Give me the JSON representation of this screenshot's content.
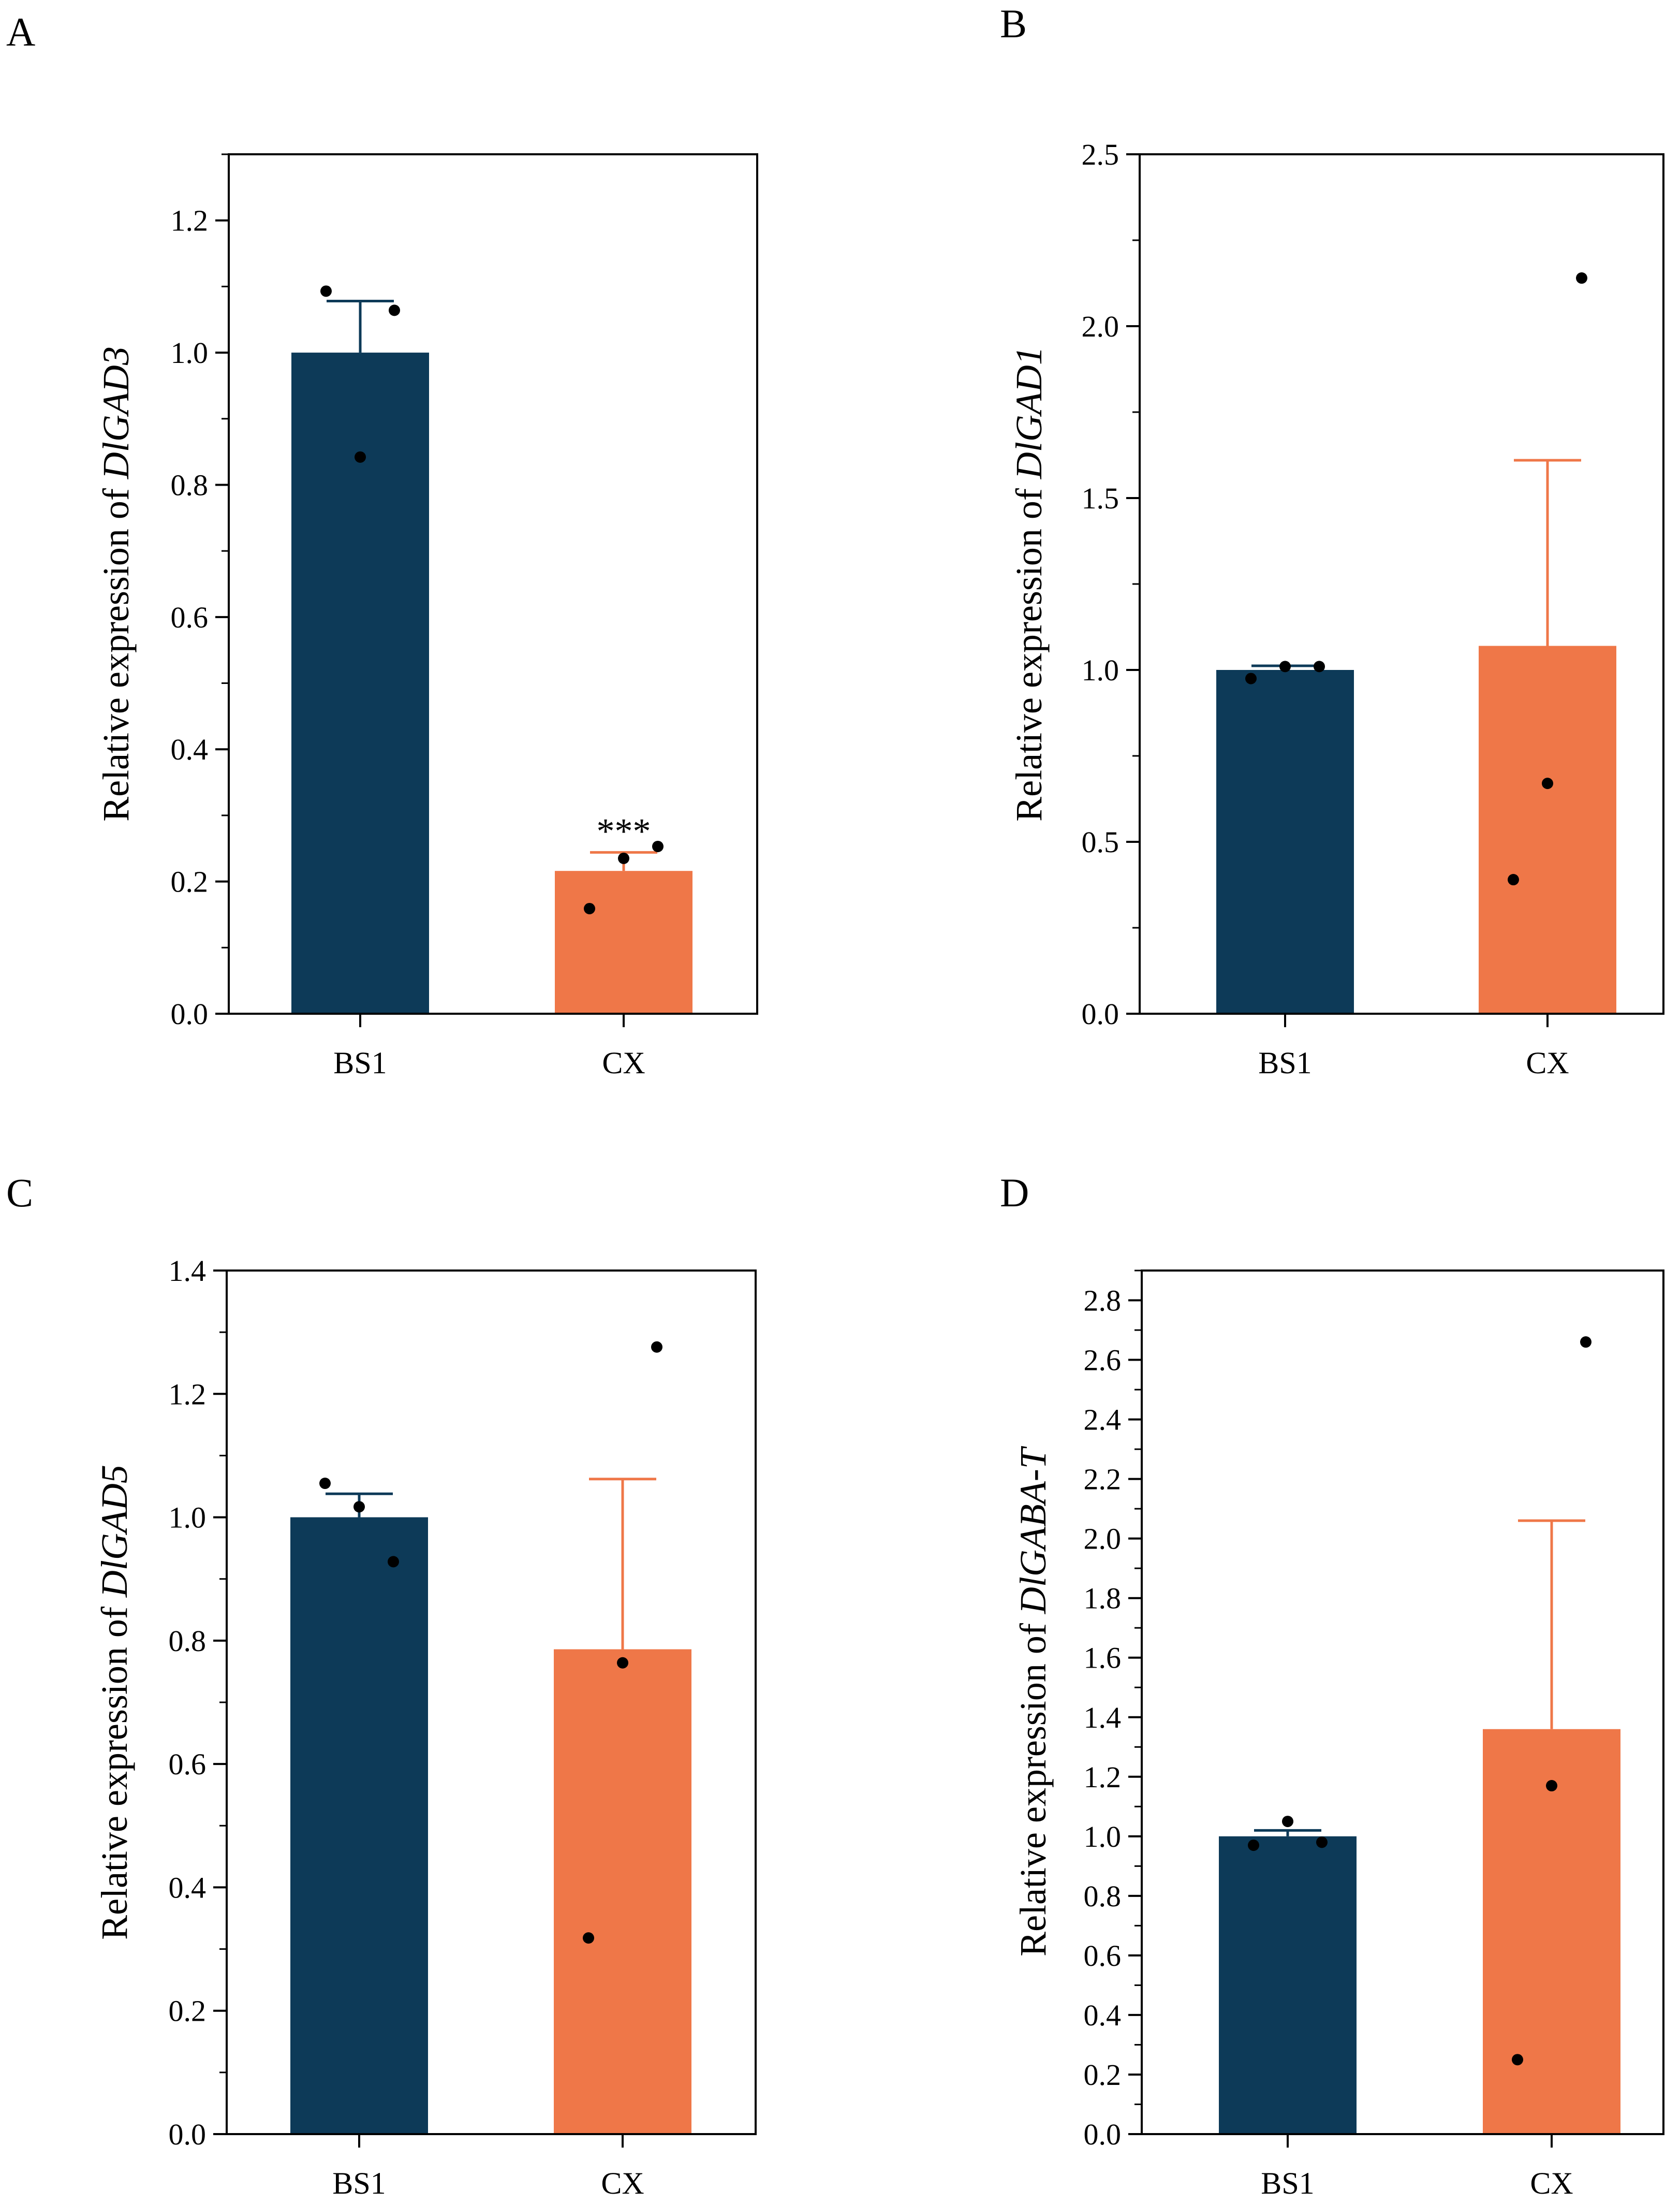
{
  "colors": {
    "bs1_bar": "#0d3a58",
    "cx_bar": "#ef7748",
    "points": "#000000",
    "axis": "#000000",
    "background": "#ffffff"
  },
  "chart_data": [
    {
      "type": "bar",
      "panel": "A",
      "categories": [
        "BS1",
        "CX"
      ],
      "values": [
        1.0,
        0.216
      ],
      "error_upper": [
        1.078,
        0.244
      ],
      "points": [
        [
          1.093,
          0.842,
          1.064
        ],
        [
          0.159,
          0.235,
          0.253
        ]
      ],
      "annotations": [
        {
          "category": "CX",
          "text": "***"
        }
      ],
      "ylabel_prefix": "Relative expression of ",
      "ylabel_gene": "DlGAD3",
      "ylim": [
        0,
        1.3
      ],
      "yticks": [
        0.0,
        0.2,
        0.4,
        0.6,
        0.8,
        1.0,
        1.2
      ],
      "ytick_labels": [
        "0.0",
        "0.2",
        "0.4",
        "0.6",
        "0.8",
        "1.0",
        "1.2"
      ],
      "yminor_step": 0.1
    },
    {
      "type": "bar",
      "panel": "B",
      "categories": [
        "BS1",
        "CX"
      ],
      "values": [
        1.0,
        1.07
      ],
      "error_upper": [
        1.012,
        1.61
      ],
      "points": [
        [
          0.975,
          1.01,
          1.01
        ],
        [
          0.39,
          0.67,
          2.14
        ]
      ],
      "annotations": [],
      "ylabel_prefix": "Relative expression of ",
      "ylabel_gene": "DlGAD1",
      "ylim": [
        0,
        2.5
      ],
      "yticks": [
        0.0,
        0.5,
        1.0,
        1.5,
        2.0,
        2.5
      ],
      "ytick_labels": [
        "0.0",
        "0.5",
        "1.0",
        "1.5",
        "2.0",
        "2.5"
      ],
      "yminor_step": 0.25
    },
    {
      "type": "bar",
      "panel": "C",
      "categories": [
        "BS1",
        "CX"
      ],
      "values": [
        1.0,
        0.786
      ],
      "error_upper": [
        1.038,
        1.062
      ],
      "points": [
        [
          1.055,
          1.017,
          0.928
        ],
        [
          0.318,
          0.764,
          1.276
        ]
      ],
      "annotations": [],
      "ylabel_prefix": "Relative expression of ",
      "ylabel_gene": "DlGAD5",
      "ylim": [
        0,
        1.4
      ],
      "yticks": [
        0.0,
        0.2,
        0.4,
        0.6,
        0.8,
        1.0,
        1.2,
        1.4
      ],
      "ytick_labels": [
        "0.0",
        "0.2",
        "0.4",
        "0.6",
        "0.8",
        "1.0",
        "1.2",
        "1.4"
      ],
      "yminor_step": 0.1
    },
    {
      "type": "bar",
      "panel": "D",
      "categories": [
        "BS1",
        "CX"
      ],
      "values": [
        1.0,
        1.36
      ],
      "error_upper": [
        1.02,
        2.06
      ],
      "points": [
        [
          0.97,
          1.05,
          0.98
        ],
        [
          0.25,
          1.17,
          2.66
        ]
      ],
      "annotations": [],
      "ylabel_prefix": "Relative expression of ",
      "ylabel_gene": "DlGABA-T",
      "ylim": [
        0,
        2.9
      ],
      "yticks": [
        0.0,
        0.2,
        0.4,
        0.6,
        0.8,
        1.0,
        1.2,
        1.4,
        1.6,
        1.8,
        2.0,
        2.2,
        2.4,
        2.6,
        2.8
      ],
      "ytick_labels": [
        "0.0",
        "0.2",
        "0.4",
        "0.6",
        "0.8",
        "1.0",
        "1.2",
        "1.4",
        "1.6",
        "1.8",
        "2.0",
        "2.2",
        "2.4",
        "2.6",
        "2.8"
      ],
      "yminor_step": 0.1
    }
  ]
}
